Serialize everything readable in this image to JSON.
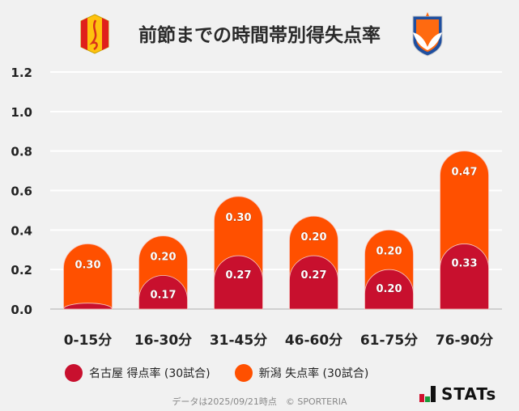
{
  "chart_data": {
    "type": "bar",
    "stacked": true,
    "title": "前節までの時間帯別得失点率",
    "categories": [
      "0-15分",
      "16-30分",
      "31-45分",
      "46-60分",
      "61-75分",
      "76-90分"
    ],
    "series": [
      {
        "name": "名古屋 得点率 (30試合)",
        "color": "#c8102e",
        "values": [
          0.03,
          0.17,
          0.27,
          0.27,
          0.2,
          0.33
        ],
        "labels": [
          "",
          "0.17",
          "0.27",
          "0.27",
          "0.20",
          "0.33"
        ]
      },
      {
        "name": "新潟 失点率 (30試合)",
        "color": "#ff5000",
        "values": [
          0.3,
          0.2,
          0.3,
          0.2,
          0.2,
          0.47
        ],
        "labels": [
          "0.30",
          "0.20",
          "0.30",
          "0.20",
          "0.20",
          "0.47"
        ]
      }
    ],
    "yticks": [
      "0.0",
      "0.2",
      "0.4",
      "0.6",
      "0.8",
      "1.0",
      "1.2"
    ],
    "ylim": [
      0,
      1.2
    ],
    "grid": true,
    "legend_position": "bottom"
  },
  "footer": {
    "note": "データは2025/09/21時点　© SPORTERIA",
    "brand": "STATs"
  },
  "logos": {
    "home": "名古屋グランパス エンブレム",
    "away": "アルビレックス新潟 エンブレム"
  }
}
